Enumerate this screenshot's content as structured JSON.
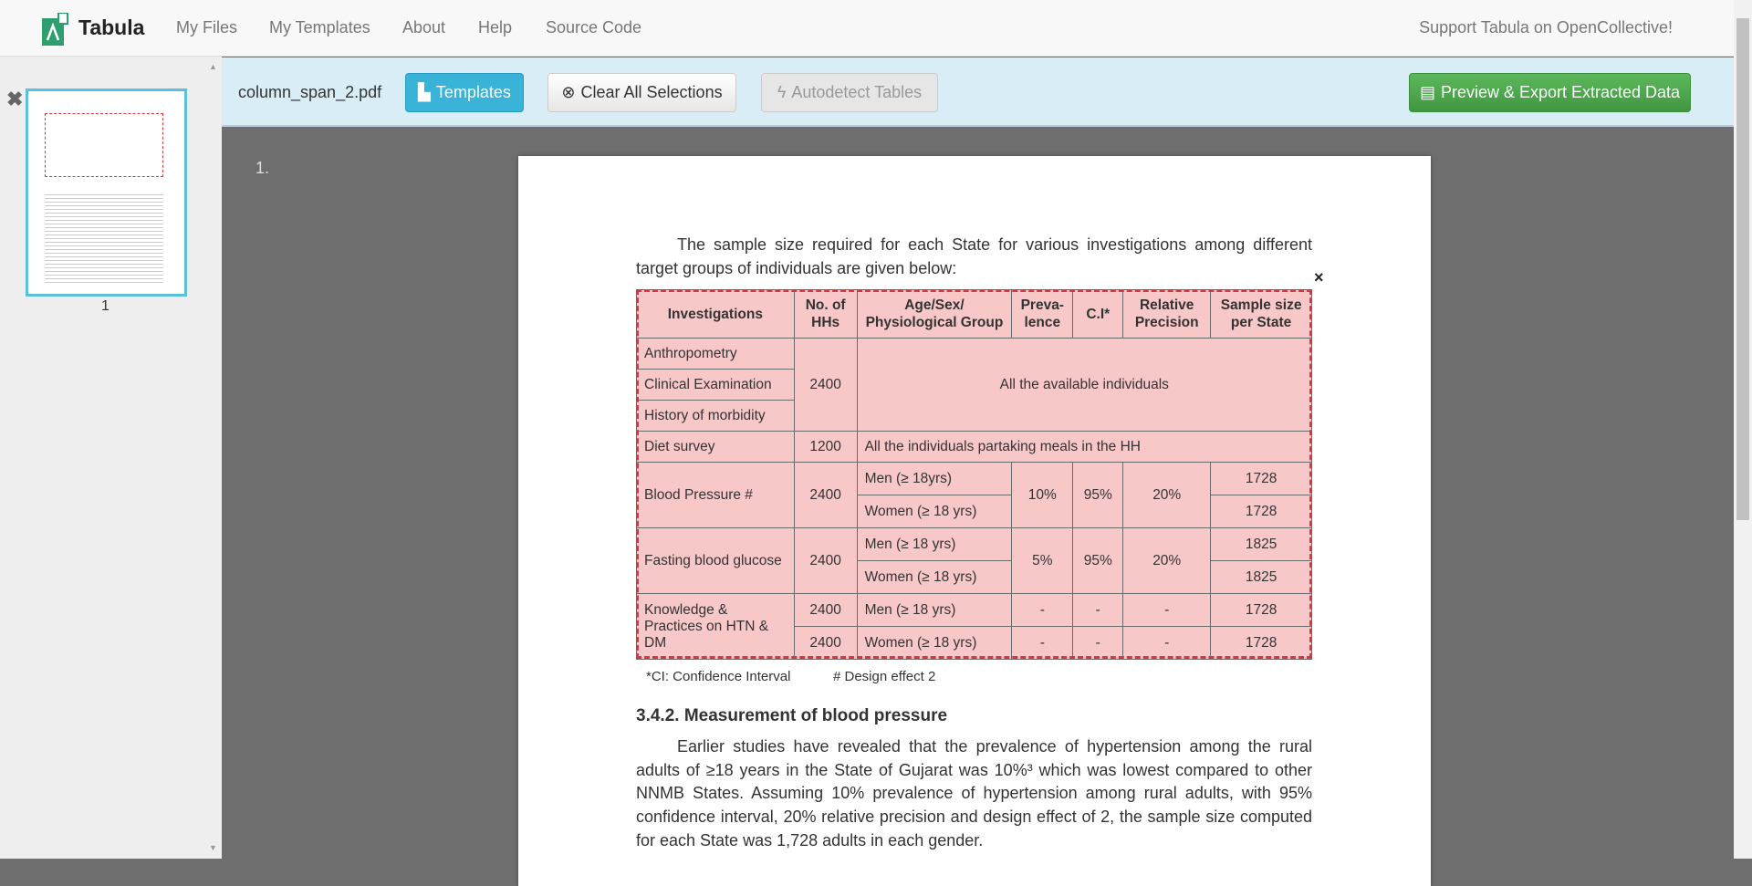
{
  "nav": {
    "brand": "Tabula",
    "links": [
      "My Files",
      "My Templates",
      "About",
      "Help",
      "Source Code"
    ],
    "support": "Support Tabula on OpenCollective!"
  },
  "toolbar": {
    "filename": "column_span_2.pdf",
    "templates": "Templates",
    "clear": "Clear All Selections",
    "autodetect": "Autodetect Tables",
    "export": "Preview & Export Extracted Data"
  },
  "sidebar": {
    "page_label": "1"
  },
  "main": {
    "page_number": "1."
  },
  "pdf": {
    "intro": "The sample size required for each State for various investigations among different target groups of individuals are given below:",
    "headers": [
      "Investigations",
      "No. of HHs",
      "Age/Sex/ Physiological Group",
      "Preva- lence",
      "C.I*",
      "Relative Precision",
      "Sample size per State"
    ],
    "rows": {
      "anthro": "Anthropometry",
      "clinical": "Clinical Examination",
      "history": "History of morbidity",
      "hh2400": "2400",
      "all_avail": "All the available individuals",
      "diet": "Diet survey",
      "diet_hh": "1200",
      "diet_group": "All the individuals partaking meals in the HH",
      "bp": "Blood Pressure #",
      "bp_hh": "2400",
      "bp_men": "Men (≥ 18yrs)",
      "bp_women": "Women (≥ 18 yrs)",
      "bp_prev": "10%",
      "bp_ci": "95%",
      "bp_rp": "20%",
      "bp_s1": "1728",
      "bp_s2": "1728",
      "fbg": "Fasting blood glucose",
      "fbg_hh": "2400",
      "fbg_men": "Men (≥ 18 yrs)",
      "fbg_women": "Women (≥ 18 yrs)",
      "fbg_prev": "5%",
      "fbg_ci": "95%",
      "fbg_rp": "20%",
      "fbg_s1": "1825",
      "fbg_s2": "1825",
      "k": "Knowledge & Practices on HTN & DM",
      "k_hh1": "2400",
      "k_men": "Men (≥ 18 yrs)",
      "k_hh2": "2400",
      "k_women": "Women (≥ 18 yrs)",
      "dash": "-",
      "k_s1": "1728",
      "k_s2": "1728"
    },
    "footnote1": "*CI: Confidence Interval",
    "footnote2": "# Design effect 2",
    "heading": "3.4.2. Measurement of blood pressure",
    "para": "Earlier studies have revealed that the prevalence of hypertension among the rural adults of ≥18 years in the State of Gujarat was 10%³ which was lowest compared to other NNMB States. Assuming 10% prevalence of hypertension among rural adults, with 95% confidence interval, 20% relative precision and design effect of 2, the sample size computed for each State was 1,728 adults in each gender."
  },
  "colors": {
    "accent": "#5bc0de",
    "export": "#47a447",
    "selection": "#d9363e"
  }
}
